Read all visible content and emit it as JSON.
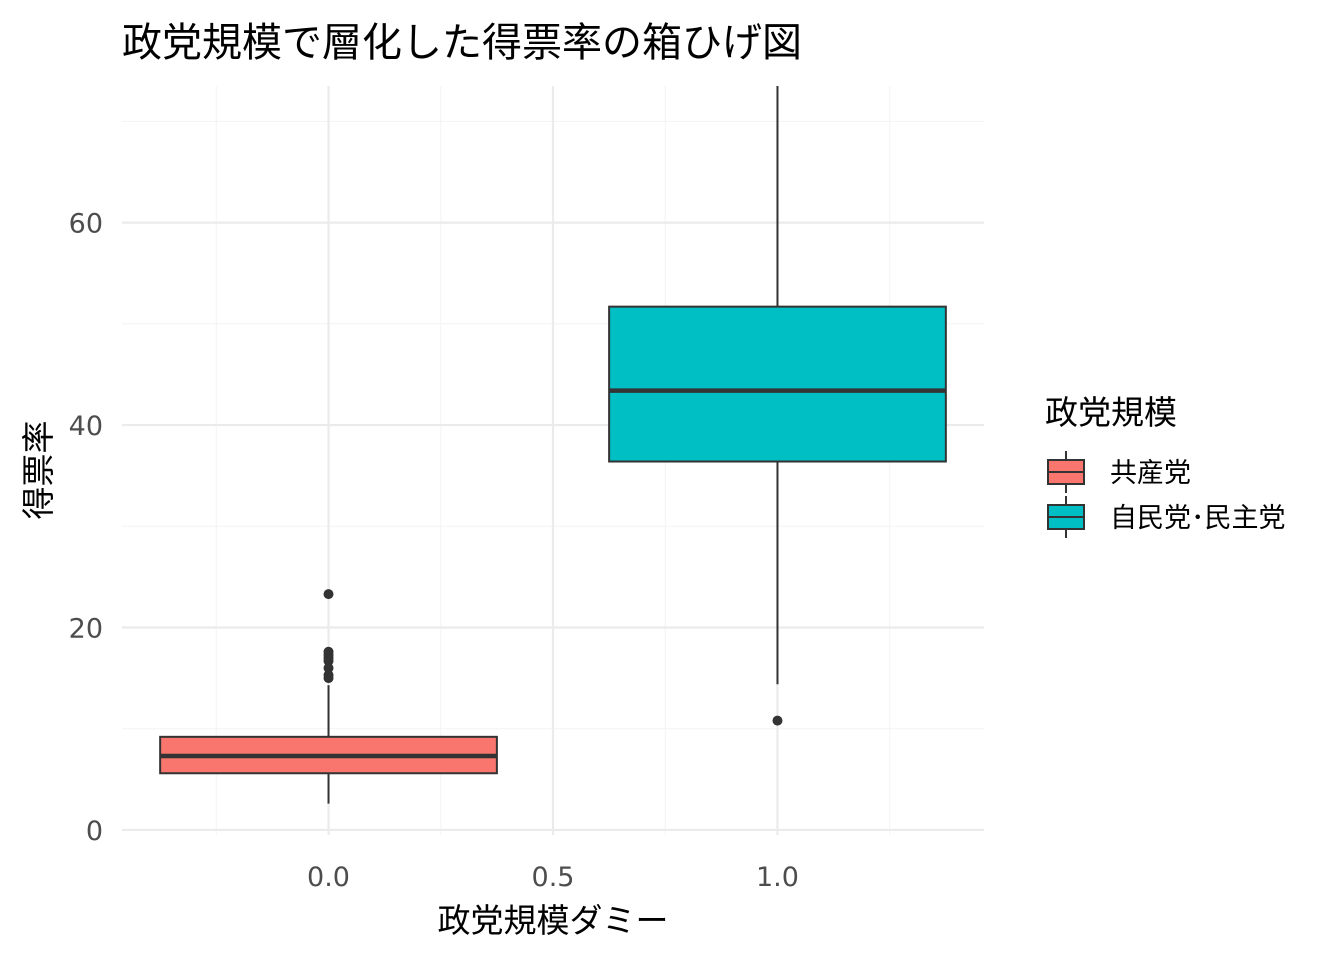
{
  "chart_data": {
    "type": "boxplot",
    "title": "政党規模で層化した得票率の箱ひげ図",
    "xlabel": "政党規模ダミー",
    "ylabel": "得票率",
    "xlim": [
      -0.46,
      1.46
    ],
    "ylim": [
      -0.5,
      73.5
    ],
    "x_ticks": [
      0.0,
      0.5,
      1.0
    ],
    "x_tick_labels": [
      "0.0",
      "0.5",
      "1.0"
    ],
    "y_ticks": [
      0,
      20,
      40,
      60
    ],
    "y_tick_labels": [
      "0",
      "20",
      "40",
      "60"
    ],
    "grid": true,
    "legend": {
      "title": "政党規模",
      "position": "right",
      "entries": [
        {
          "label": "共産党",
          "color": "#F8766D"
        },
        {
          "label": "自民党･民主党",
          "color": "#00BFC4"
        }
      ]
    },
    "boxes": [
      {
        "x": 0,
        "width": 0.75,
        "color": "#F8766D",
        "min": 2.6,
        "q1": 5.6,
        "median": 7.3,
        "q3": 9.2,
        "max": 14.3,
        "outliers": [
          23.3,
          17.6,
          17.3,
          17.0,
          16.7,
          16.0,
          15.3,
          15.0
        ]
      },
      {
        "x": 1,
        "width": 0.75,
        "color": "#00BFC4",
        "min": 14.4,
        "q1": 36.4,
        "median": 43.4,
        "q3": 51.7,
        "max": 73.5,
        "outliers": [
          10.8
        ]
      }
    ]
  }
}
